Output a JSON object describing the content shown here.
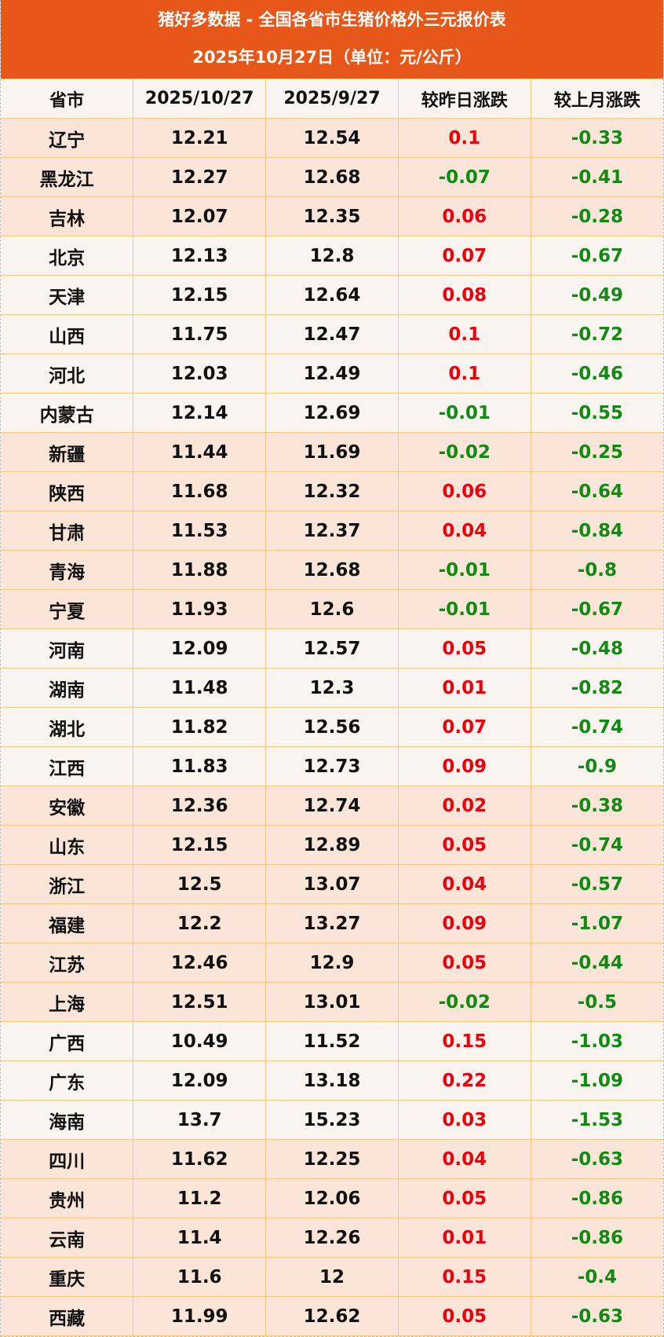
{
  "header": {
    "title": "猪好多数据 - 全国各省市生猪价格外三元报价表",
    "subtitle": "2025年10月27日（单位：元/公斤）",
    "accent_color": "#E8571A"
  },
  "columns": [
    "省市",
    "2025/10/27",
    "2025/9/27",
    "较昨日涨跌",
    "较上月涨跌"
  ],
  "colors": {
    "rise": "#E8000B",
    "fall": "#118a11",
    "band_a": "#FBE4D8",
    "band_b": "#F9F4F0"
  },
  "rows": [
    {
      "province": "辽宁",
      "today": "12.21",
      "last_month": "12.54",
      "day_change": "0.1",
      "month_change": "-0.33",
      "band": "peach"
    },
    {
      "province": "黑龙江",
      "today": "12.27",
      "last_month": "12.68",
      "day_change": "-0.07",
      "month_change": "-0.41",
      "band": "peach"
    },
    {
      "province": "吉林",
      "today": "12.07",
      "last_month": "12.35",
      "day_change": "0.06",
      "month_change": "-0.28",
      "band": "peach"
    },
    {
      "province": "北京",
      "today": "12.13",
      "last_month": "12.8",
      "day_change": "0.07",
      "month_change": "-0.67",
      "band": "light"
    },
    {
      "province": "天津",
      "today": "12.15",
      "last_month": "12.64",
      "day_change": "0.08",
      "month_change": "-0.49",
      "band": "light"
    },
    {
      "province": "山西",
      "today": "11.75",
      "last_month": "12.47",
      "day_change": "0.1",
      "month_change": "-0.72",
      "band": "light"
    },
    {
      "province": "河北",
      "today": "12.03",
      "last_month": "12.49",
      "day_change": "0.1",
      "month_change": "-0.46",
      "band": "light"
    },
    {
      "province": "内蒙古",
      "today": "12.14",
      "last_month": "12.69",
      "day_change": "-0.01",
      "month_change": "-0.55",
      "band": "light"
    },
    {
      "province": "新疆",
      "today": "11.44",
      "last_month": "11.69",
      "day_change": "-0.02",
      "month_change": "-0.25",
      "band": "peach"
    },
    {
      "province": "陕西",
      "today": "11.68",
      "last_month": "12.32",
      "day_change": "0.06",
      "month_change": "-0.64",
      "band": "peach"
    },
    {
      "province": "甘肃",
      "today": "11.53",
      "last_month": "12.37",
      "day_change": "0.04",
      "month_change": "-0.84",
      "band": "peach"
    },
    {
      "province": "青海",
      "today": "11.88",
      "last_month": "12.68",
      "day_change": "-0.01",
      "month_change": "-0.8",
      "band": "peach"
    },
    {
      "province": "宁夏",
      "today": "11.93",
      "last_month": "12.6",
      "day_change": "-0.01",
      "month_change": "-0.67",
      "band": "peach"
    },
    {
      "province": "河南",
      "today": "12.09",
      "last_month": "12.57",
      "day_change": "0.05",
      "month_change": "-0.48",
      "band": "light"
    },
    {
      "province": "湖南",
      "today": "11.48",
      "last_month": "12.3",
      "day_change": "0.01",
      "month_change": "-0.82",
      "band": "light"
    },
    {
      "province": "湖北",
      "today": "11.82",
      "last_month": "12.56",
      "day_change": "0.07",
      "month_change": "-0.74",
      "band": "light"
    },
    {
      "province": "江西",
      "today": "11.83",
      "last_month": "12.73",
      "day_change": "0.09",
      "month_change": "-0.9",
      "band": "light"
    },
    {
      "province": "安徽",
      "today": "12.36",
      "last_month": "12.74",
      "day_change": "0.02",
      "month_change": "-0.38",
      "band": "peach"
    },
    {
      "province": "山东",
      "today": "12.15",
      "last_month": "12.89",
      "day_change": "0.05",
      "month_change": "-0.74",
      "band": "peach"
    },
    {
      "province": "浙江",
      "today": "12.5",
      "last_month": "13.07",
      "day_change": "0.04",
      "month_change": "-0.57",
      "band": "peach"
    },
    {
      "province": "福建",
      "today": "12.2",
      "last_month": "13.27",
      "day_change": "0.09",
      "month_change": "-1.07",
      "band": "peach"
    },
    {
      "province": "江苏",
      "today": "12.46",
      "last_month": "12.9",
      "day_change": "0.05",
      "month_change": "-0.44",
      "band": "peach"
    },
    {
      "province": "上海",
      "today": "12.51",
      "last_month": "13.01",
      "day_change": "-0.02",
      "month_change": "-0.5",
      "band": "peach"
    },
    {
      "province": "广西",
      "today": "10.49",
      "last_month": "11.52",
      "day_change": "0.15",
      "month_change": "-1.03",
      "band": "light"
    },
    {
      "province": "广东",
      "today": "12.09",
      "last_month": "13.18",
      "day_change": "0.22",
      "month_change": "-1.09",
      "band": "light"
    },
    {
      "province": "海南",
      "today": "13.7",
      "last_month": "15.23",
      "day_change": "0.03",
      "month_change": "-1.53",
      "band": "light"
    },
    {
      "province": "四川",
      "today": "11.62",
      "last_month": "12.25",
      "day_change": "0.04",
      "month_change": "-0.63",
      "band": "peach"
    },
    {
      "province": "贵州",
      "today": "11.2",
      "last_month": "12.06",
      "day_change": "0.05",
      "month_change": "-0.86",
      "band": "peach"
    },
    {
      "province": "云南",
      "today": "11.4",
      "last_month": "12.26",
      "day_change": "0.01",
      "month_change": "-0.86",
      "band": "peach"
    },
    {
      "province": "重庆",
      "today": "11.6",
      "last_month": "12",
      "day_change": "0.15",
      "month_change": "-0.4",
      "band": "peach"
    },
    {
      "province": "西藏",
      "today": "11.99",
      "last_month": "12.62",
      "day_change": "0.05",
      "month_change": "-0.63",
      "band": "peach"
    }
  ]
}
